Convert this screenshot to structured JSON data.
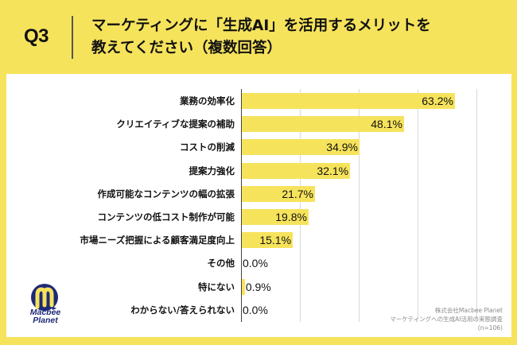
{
  "header": {
    "question_number": "Q3",
    "title_line1": "マーケティングに「生成AI」を活用するメリットを",
    "title_line2": "教えてください（複数回答）"
  },
  "colors": {
    "background": "#F6E35C",
    "bar": "#F6E35C",
    "logo_navy": "#1e2a78"
  },
  "logo": {
    "line1": "Macbee",
    "line2": "Planet",
    "icon": "macbee-planet-logo-icon"
  },
  "source": {
    "company": "株式会社Macbee Planet",
    "survey": "マーケティングへの生成AI活用の実態調査",
    "sample": "(n=106)"
  },
  "chart_data": {
    "type": "bar",
    "orientation": "horizontal",
    "title": "マーケティングに「生成AI」を活用するメリットを教えてください（複数回答）",
    "categories": [
      "業務の効率化",
      "クリエイティブな提案の補助",
      "コストの削減",
      "提案力強化",
      "作成可能なコンテンツの幅の拡張",
      "コンテンツの低コスト制作が可能",
      "市場ニーズ把握による顧客満足度向上",
      "その他",
      "特にない",
      "わからない/答えられない"
    ],
    "values": [
      63.2,
      48.1,
      34.9,
      32.1,
      21.7,
      19.8,
      15.1,
      0.0,
      0.9,
      0.0
    ],
    "value_labels": [
      "63.2%",
      "48.1%",
      "34.9%",
      "32.1%",
      "21.7%",
      "19.8%",
      "15.1%",
      "0.0%",
      "0.9%",
      "0.0%"
    ],
    "unit": "%",
    "xlim": [
      0,
      80
    ],
    "grid": true,
    "xlabel": "",
    "ylabel": ""
  }
}
